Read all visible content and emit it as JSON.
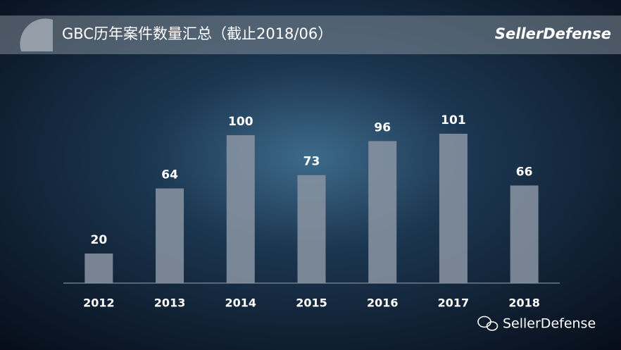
{
  "chart_data": {
    "type": "bar",
    "title": "GBC历年案件数量汇总（截止2018/06）",
    "brand": "SellerDefense",
    "footer": "SellerDefense",
    "categories": [
      "2012",
      "2013",
      "2014",
      "2015",
      "2016",
      "2017",
      "2018"
    ],
    "values": [
      20,
      64,
      100,
      73,
      96,
      101,
      66
    ],
    "color": "#8b95a3",
    "ylim": [
      0,
      110
    ]
  }
}
